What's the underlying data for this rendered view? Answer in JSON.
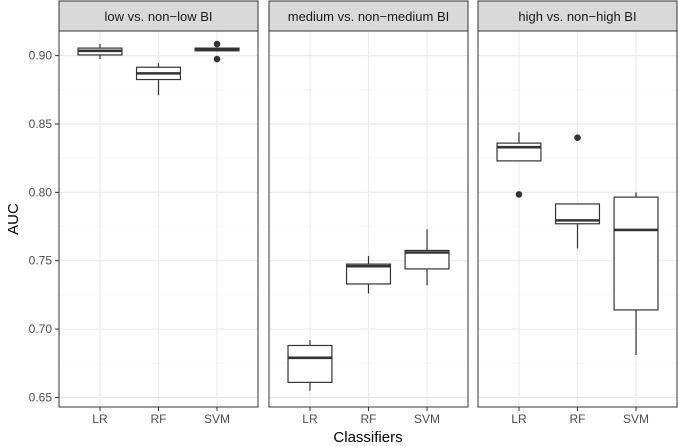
{
  "chart_data": {
    "type": "boxplot",
    "facets": [
      {
        "title": "low vs. non−low BI",
        "boxes": [
          {
            "category": "LR",
            "q1": 0.9005,
            "median": 0.9035,
            "q3": 0.9055,
            "whisker_low": 0.8975,
            "whisker_high": 0.9085,
            "outliers": []
          },
          {
            "category": "RF",
            "q1": 0.8825,
            "median": 0.887,
            "q3": 0.8915,
            "whisker_low": 0.871,
            "whisker_high": 0.8945,
            "outliers": []
          },
          {
            "category": "SVM",
            "q1": 0.9035,
            "median": 0.9045,
            "q3": 0.9055,
            "whisker_low": 0.903,
            "whisker_high": 0.906,
            "outliers": [
              0.9085,
              0.8975
            ]
          }
        ]
      },
      {
        "title": "medium vs. non−medium BI",
        "boxes": [
          {
            "category": "LR",
            "q1": 0.661,
            "median": 0.679,
            "q3": 0.688,
            "whisker_low": 0.655,
            "whisker_high": 0.692,
            "outliers": []
          },
          {
            "category": "RF",
            "q1": 0.733,
            "median": 0.746,
            "q3": 0.7475,
            "whisker_low": 0.726,
            "whisker_high": 0.7535,
            "outliers": []
          },
          {
            "category": "SVM",
            "q1": 0.744,
            "median": 0.756,
            "q3": 0.7575,
            "whisker_low": 0.732,
            "whisker_high": 0.773,
            "outliers": []
          }
        ]
      },
      {
        "title": "high vs. non−high BI",
        "boxes": [
          {
            "category": "LR",
            "q1": 0.823,
            "median": 0.833,
            "q3": 0.836,
            "whisker_low": 0.823,
            "whisker_high": 0.844,
            "outliers": [
              0.7985
            ]
          },
          {
            "category": "RF",
            "q1": 0.777,
            "median": 0.7795,
            "q3": 0.7915,
            "whisker_low": 0.759,
            "whisker_high": 0.7915,
            "outliers": [
              0.84
            ]
          },
          {
            "category": "SVM",
            "q1": 0.714,
            "median": 0.7725,
            "q3": 0.7965,
            "whisker_low": 0.681,
            "whisker_high": 0.8,
            "outliers": []
          }
        ]
      }
    ],
    "categories": [
      "LR",
      "RF",
      "SVM"
    ],
    "xlabel": "Classifiers",
    "ylabel": "AUC",
    "ylim": [
      0.643,
      0.918
    ],
    "yticks": [
      0.65,
      0.7,
      0.75,
      0.8,
      0.85,
      0.9
    ],
    "ytick_labels": [
      "0.65",
      "0.70",
      "0.75",
      "0.80",
      "0.85",
      "0.90"
    ],
    "grid": true,
    "colors": {
      "panel_background": "#ffffff",
      "panel_border": "#333333",
      "strip_background": "#d9d9d9",
      "grid_major": "#ebebeb",
      "grid_minor": "#f5f5f5",
      "box_line": "#333333",
      "median_line": "#333333",
      "outlier": "#333333",
      "tick_text": "#4d4d4d",
      "axis_title": "#000000"
    }
  }
}
